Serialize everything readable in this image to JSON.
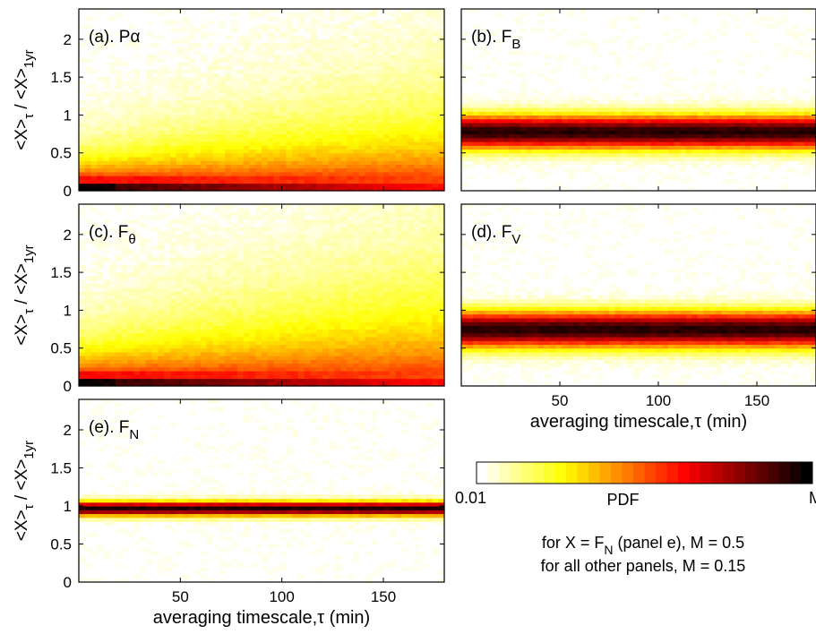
{
  "chart_data": [
    {
      "type": "heatmap",
      "id": "a",
      "label": "(a). Pα",
      "label_parts": {
        "prefix": "(a). ",
        "main": "Pα",
        "sub": ""
      },
      "xlim": [
        0,
        180
      ],
      "ylim": [
        0,
        2.4
      ],
      "yticks": [
        "0",
        "0.5",
        "1",
        "1.5",
        "2"
      ],
      "ylabel": {
        "a": "<X>",
        "b": "τ",
        "c": " / <X>",
        "d": "1yr"
      },
      "density": {
        "kind": "decay",
        "peak_y": 0.0,
        "spread": 0.55
      }
    },
    {
      "type": "heatmap",
      "id": "b",
      "label": "(b). FB",
      "label_parts": {
        "prefix": "(b). ",
        "main": "F",
        "sub": "B"
      },
      "xlim": [
        0,
        180
      ],
      "ylim": [
        0,
        2.4
      ],
      "density": {
        "kind": "band",
        "center_y": 0.78,
        "width": 0.28
      }
    },
    {
      "type": "heatmap",
      "id": "c",
      "label": "(c). Fθ",
      "label_parts": {
        "prefix": "(c). ",
        "main": "F",
        "sub": "θ"
      },
      "xlim": [
        0,
        180
      ],
      "ylim": [
        0,
        2.4
      ],
      "yticks": [
        "0",
        "0.5",
        "1",
        "1.5",
        "2"
      ],
      "ylabel": {
        "a": "<X>",
        "b": "τ",
        "c": " / <X>",
        "d": "1yr"
      },
      "density": {
        "kind": "decay",
        "peak_y": 0.0,
        "spread": 0.7
      }
    },
    {
      "type": "heatmap",
      "id": "d",
      "label": "(d). FV",
      "label_parts": {
        "prefix": "(d). ",
        "main": "F",
        "sub": "V"
      },
      "xlim": [
        0,
        180
      ],
      "ylim": [
        0,
        2.4
      ],
      "xticks": [
        "50",
        "100",
        "150"
      ],
      "xlabel": "averaging timescale,τ (min)",
      "density": {
        "kind": "band",
        "center_y": 0.75,
        "width": 0.3
      }
    },
    {
      "type": "heatmap",
      "id": "e",
      "label": "(e). FN",
      "label_parts": {
        "prefix": "(e). ",
        "main": "F",
        "sub": "N"
      },
      "xlim": [
        0,
        180
      ],
      "ylim": [
        0,
        2.4
      ],
      "yticks": [
        "0",
        "0.5",
        "1",
        "1.5",
        "2"
      ],
      "ylabel": {
        "a": "<X>",
        "b": "τ",
        "c": " / <X>",
        "d": "1yr"
      },
      "xticks": [
        "50",
        "100",
        "150"
      ],
      "xlabel": "averaging timescale,τ (min)",
      "density": {
        "kind": "band",
        "center_y": 0.97,
        "width": 0.12
      }
    }
  ],
  "colorbar": {
    "min_label": "0.01",
    "mid_label": "PDF",
    "max_label": "M",
    "colormap": "hot (reversed)"
  },
  "note": {
    "line1": {
      "a": "for X = F",
      "b": "N",
      "c": " (panel e), M = 0.5"
    },
    "line2": "for all other panels, M = 0.15"
  }
}
